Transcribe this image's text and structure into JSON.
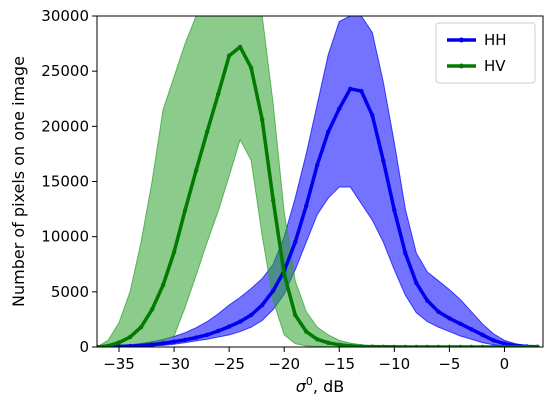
{
  "chart_data": {
    "type": "line",
    "title": "",
    "xlabel": "σ⁰, dB",
    "ylabel": "Number of pixels on one image",
    "xlim": [
      -37,
      3.5
    ],
    "ylim": [
      0,
      30000
    ],
    "xticks": [
      -35,
      -30,
      -25,
      -20,
      -15,
      -10,
      -5,
      0
    ],
    "xtick_labels": [
      "−35",
      "−30",
      "−25",
      "−20",
      "−15",
      "−10",
      "−5",
      "0"
    ],
    "yticks": [
      0,
      5000,
      10000,
      15000,
      20000,
      25000,
      30000
    ],
    "ytick_labels": [
      "0",
      "5000",
      "10000",
      "15000",
      "20000",
      "25000",
      "30000"
    ],
    "legend_position": "top-right",
    "grid": false,
    "x": [
      -37,
      -36,
      -35,
      -34,
      -33,
      -32,
      -31,
      -30,
      -29,
      -28,
      -27,
      -26,
      -25,
      -24,
      -23,
      -22,
      -21,
      -20,
      -19,
      -18,
      -17,
      -16,
      -15,
      -14,
      -13,
      -12,
      -11,
      -10,
      -9,
      -8,
      -7,
      -6,
      -5,
      -4,
      -3,
      -2,
      -1,
      0,
      1,
      2,
      3
    ],
    "series": [
      {
        "name": "HH",
        "color": "#0000ee",
        "band_color": "#0000ff",
        "values": [
          0,
          0,
          50,
          80,
          130,
          220,
          330,
          480,
          650,
          850,
          1100,
          1450,
          1850,
          2300,
          2900,
          3800,
          5100,
          6900,
          9500,
          12800,
          16500,
          19500,
          21600,
          23400,
          23200,
          21000,
          16900,
          12400,
          8500,
          5800,
          4200,
          3200,
          2600,
          2100,
          1600,
          1100,
          600,
          300,
          120,
          50,
          20
        ],
        "lower": [
          0,
          0,
          0,
          20,
          50,
          100,
          150,
          250,
          400,
          550,
          700,
          900,
          1100,
          1400,
          1800,
          2400,
          3400,
          4800,
          7000,
          9500,
          12000,
          13500,
          14500,
          14500,
          13000,
          11500,
          9500,
          7000,
          4700,
          3100,
          2300,
          1800,
          1400,
          1000,
          700,
          400,
          200,
          80,
          30,
          0,
          0
        ],
        "upper": [
          0,
          50,
          120,
          200,
          320,
          480,
          680,
          950,
          1300,
          1750,
          2300,
          3000,
          3800,
          4500,
          5300,
          6200,
          7500,
          10000,
          13500,
          17500,
          22000,
          26500,
          29500,
          30000,
          30000,
          28500,
          24000,
          18500,
          12500,
          8500,
          6800,
          6000,
          5200,
          4300,
          3200,
          2100,
          1200,
          600,
          300,
          150,
          80
        ]
      },
      {
        "name": "HV",
        "color": "#007a00",
        "band_color": "#2ca02c",
        "values": [
          0,
          100,
          400,
          900,
          1800,
          3400,
          5600,
          8600,
          12400,
          16000,
          19500,
          22900,
          26400,
          27200,
          25300,
          20600,
          13300,
          6600,
          2900,
          1400,
          700,
          380,
          200,
          100,
          50,
          30,
          20,
          10,
          0,
          0,
          0,
          0,
          0,
          0,
          0,
          0,
          0,
          0,
          0,
          0,
          0
        ],
        "lower": [
          0,
          0,
          50,
          100,
          200,
          400,
          600,
          1000,
          3600,
          6500,
          9500,
          12300,
          15500,
          18800,
          16900,
          10100,
          4200,
          1100,
          300,
          100,
          50,
          20,
          0,
          0,
          0,
          0,
          0,
          0,
          0,
          0,
          0,
          0,
          0,
          0,
          0,
          0,
          0,
          0,
          0,
          0,
          0
        ],
        "upper": [
          0,
          600,
          2200,
          5000,
          9500,
          15000,
          21500,
          24500,
          27500,
          30000,
          30000,
          30000,
          30000,
          30000,
          30000,
          30000,
          22000,
          12200,
          6000,
          3200,
          1800,
          1100,
          600,
          350,
          200,
          100,
          50,
          20,
          0,
          0,
          0,
          0,
          0,
          0,
          0,
          0,
          0,
          0,
          0,
          0,
          0
        ]
      }
    ]
  }
}
